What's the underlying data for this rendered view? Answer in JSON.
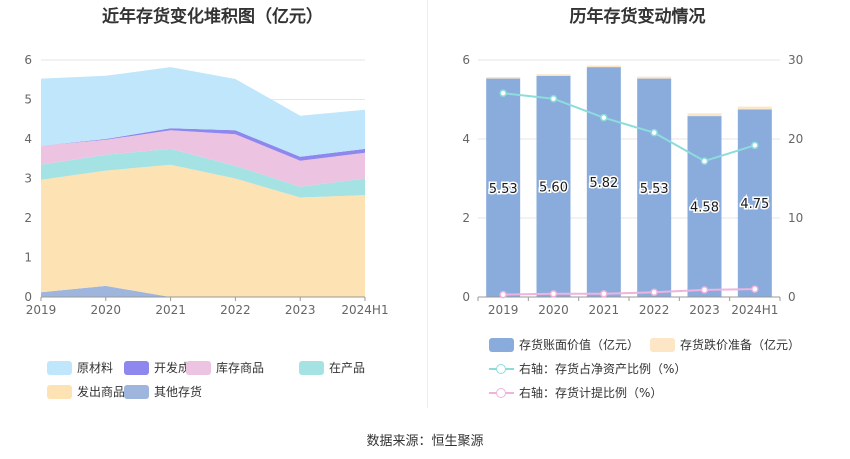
{
  "left_chart_title": "近年存货变化堆积图（亿元）",
  "right_chart_title": "历年存货变动情况",
  "source_text": "数据来源：恒生聚源",
  "colors": {
    "原材料": "#bfe6fa",
    "开发成本": "#8d87ee",
    "库存商品": "#ecc4e2",
    "在产品": "#a4e2e4",
    "发出商品": "#fde2b4",
    "其他存货": "#9eb6de",
    "bar_book": "#8aacdc",
    "bar_provision": "#fde6c6",
    "line_ratio": "#8ddcdc",
    "line_provision": "#f0b2de"
  },
  "chart_data": [
    {
      "type": "area",
      "stacked": true,
      "title": "近年存货变化堆积图（亿元）",
      "categories": [
        "2019",
        "2020",
        "2021",
        "2022",
        "2023",
        "2024H1"
      ],
      "ylim": [
        0,
        6
      ],
      "yticks": [
        "0",
        "1",
        "2",
        "3",
        "4",
        "5",
        "6"
      ],
      "grid": true,
      "legend_position": "bottom",
      "series": [
        {
          "name": "其他存货",
          "values": [
            0.12,
            0.28,
            0.0,
            0.0,
            0.0,
            0.0
          ]
        },
        {
          "name": "发出商品",
          "values": [
            2.85,
            2.92,
            3.35,
            3.0,
            2.52,
            2.58
          ]
        },
        {
          "name": "在产品",
          "values": [
            0.38,
            0.4,
            0.4,
            0.32,
            0.27,
            0.42
          ]
        },
        {
          "name": "库存商品",
          "values": [
            0.48,
            0.38,
            0.47,
            0.8,
            0.66,
            0.65
          ]
        },
        {
          "name": "开发成本",
          "values": [
            0.0,
            0.02,
            0.05,
            0.1,
            0.1,
            0.1
          ]
        },
        {
          "name": "原材料",
          "values": [
            1.7,
            1.6,
            1.55,
            1.3,
            1.04,
            0.99
          ]
        }
      ],
      "legend_items": [
        {
          "name": "原材料",
          "color_key": "原材料"
        },
        {
          "name": "开发成本",
          "color_key": "开发成本"
        },
        {
          "name": "库存商品",
          "color_key": "库存商品"
        },
        {
          "name": "在产品",
          "color_key": "在产品"
        },
        {
          "name": "发出商品",
          "color_key": "发出商品"
        },
        {
          "name": "其他存货",
          "color_key": "其他存货"
        }
      ]
    },
    {
      "type": "bar",
      "stacked": true,
      "title": "历年存货变动情况",
      "categories": [
        "2019",
        "2020",
        "2021",
        "2022",
        "2023",
        "2024H1"
      ],
      "ylim_left": [
        0,
        6
      ],
      "yticks_left": [
        "0",
        "2",
        "4",
        "6"
      ],
      "ylim_right": [
        0,
        30
      ],
      "yticks_right": [
        "0",
        "10",
        "20",
        "30"
      ],
      "grid": true,
      "legend_position": "bottom",
      "bar_series": [
        {
          "name": "存货账面价值（亿元）",
          "values": [
            5.53,
            5.6,
            5.82,
            5.53,
            4.58,
            4.75
          ],
          "labels": [
            "5.53",
            "5.60",
            "5.82",
            "5.53",
            "4.58",
            "4.75"
          ]
        },
        {
          "name": "存货跌价准备（亿元）",
          "values": [
            0.04,
            0.04,
            0.04,
            0.05,
            0.07,
            0.07
          ]
        }
      ],
      "line_series": [
        {
          "name": "右轴：存货占净资产比例（%）",
          "values": [
            25.8,
            25.1,
            22.7,
            20.8,
            17.2,
            19.2
          ]
        },
        {
          "name": "右轴：存货计提比例（%）",
          "values": [
            0.3,
            0.4,
            0.4,
            0.6,
            0.9,
            1.0
          ]
        }
      ]
    }
  ]
}
